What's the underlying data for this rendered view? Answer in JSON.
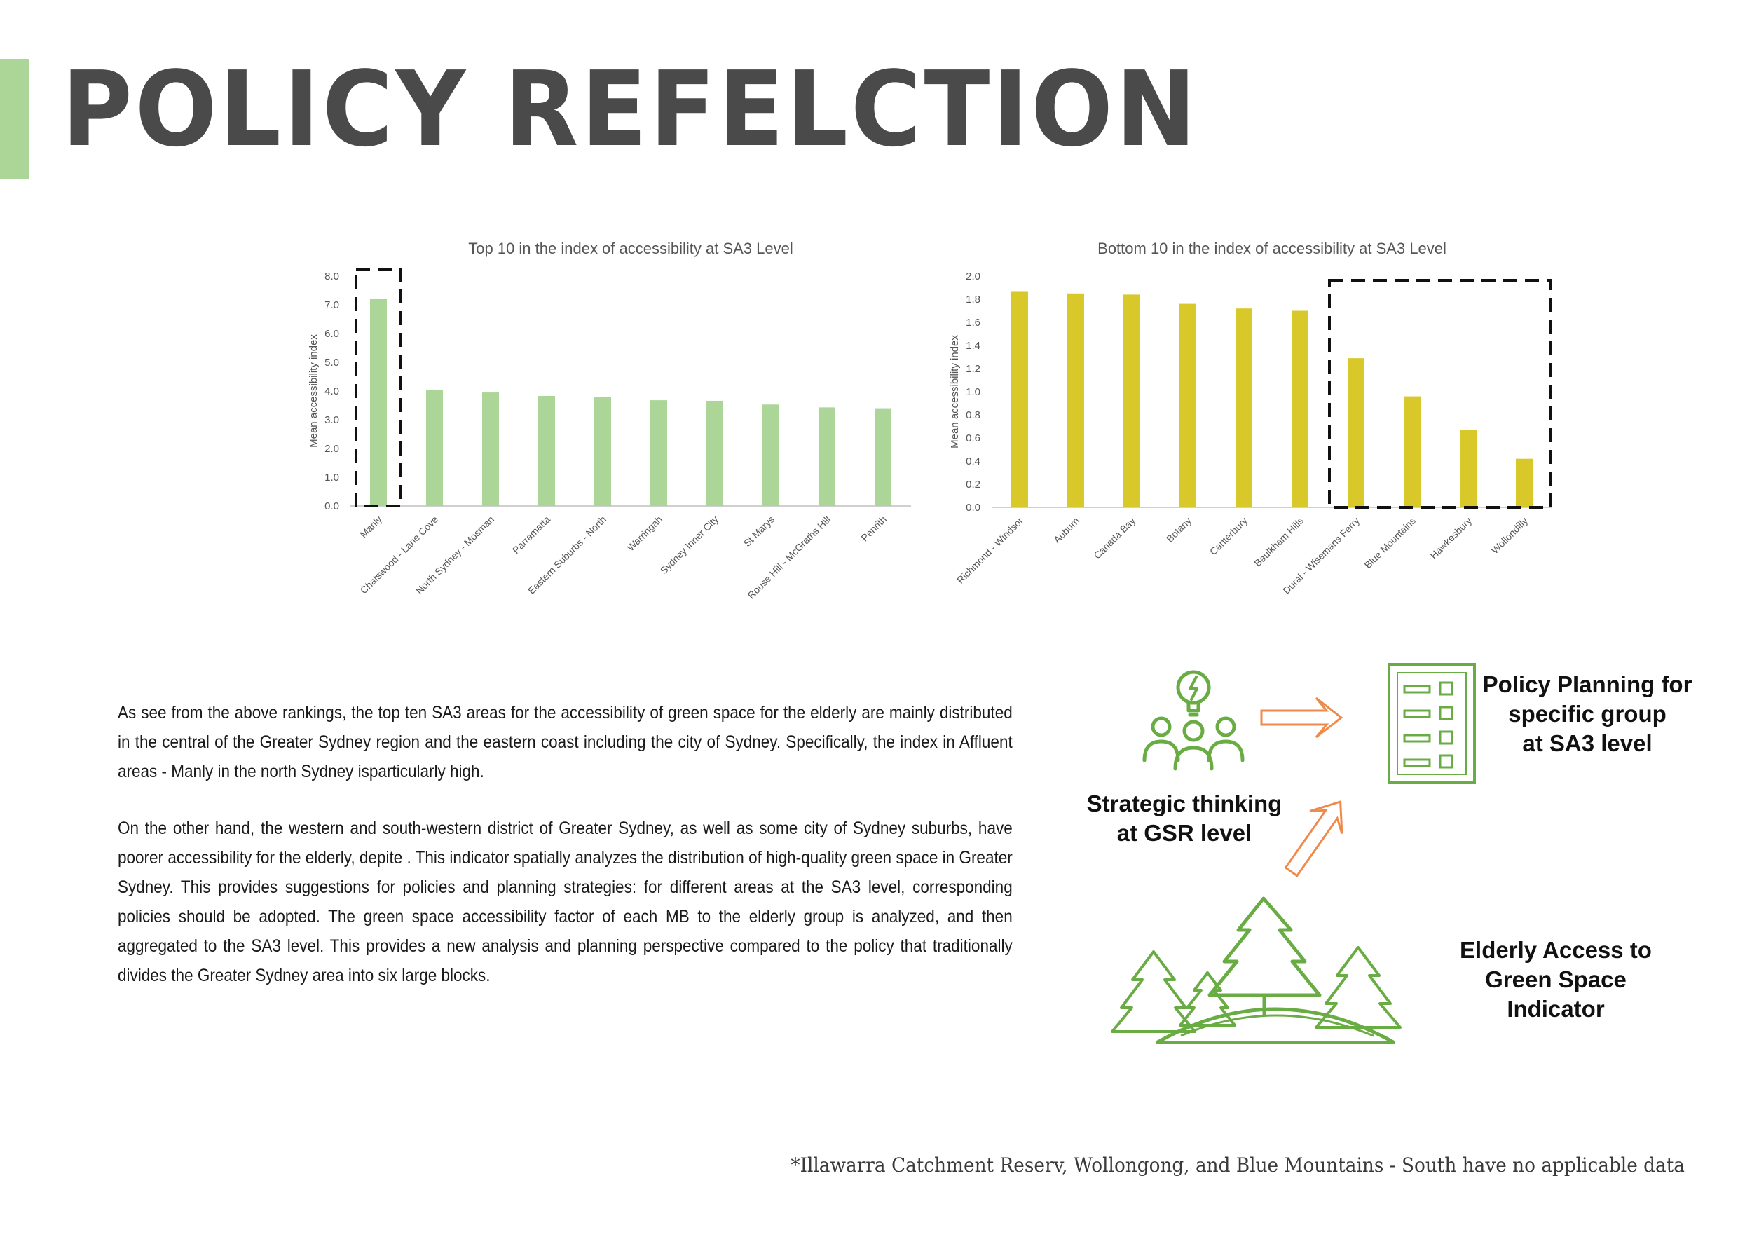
{
  "title": "POLICY REFELCTION",
  "colors": {
    "accent": "#acd698",
    "top_bar": "#acd698",
    "bottom_bar": "#d8c82a",
    "title": "#4a4a4a",
    "icon_green": "#6aac44",
    "arrow_orange": "#f08a4b"
  },
  "chart_data": [
    {
      "type": "bar",
      "title": "Top 10 in the index of accessibility at SA3 Level",
      "ylabel": "Mean accessibility index",
      "xlabel": "",
      "ylim": [
        0,
        8
      ],
      "yticks": [
        "0.0",
        "1.0",
        "2.0",
        "3.0",
        "4.0",
        "5.0",
        "6.0",
        "7.0",
        "8.0"
      ],
      "categories": [
        "Manly",
        "Chatswood - Lane Cove",
        "North Sydney - Mosman",
        "Parramatta",
        "Eastern Suburbs - North",
        "Warringah",
        "Sydney Inner City",
        "St Marys",
        "Rouse Hill - McGraths Hill",
        "Penrith"
      ],
      "values": [
        7.22,
        4.05,
        3.95,
        3.83,
        3.79,
        3.68,
        3.66,
        3.53,
        3.43,
        3.4
      ],
      "highlight": [
        "Manly"
      ],
      "grid": false
    },
    {
      "type": "bar",
      "title": "Bottom 10 in the index of accessibility at SA3 Level",
      "ylabel": "Mean accessibility  index",
      "xlabel": "",
      "ylim": [
        0,
        2
      ],
      "yticks": [
        "0.0",
        "0.2",
        "0.4",
        "0.6",
        "0.8",
        "1.0",
        "1.2",
        "1.4",
        "1.6",
        "1.8",
        "2.0"
      ],
      "categories": [
        "Richmond - Windsor",
        "Auburn",
        "Canada Bay",
        "Botany",
        "Canterbury",
        "Baulkham Hills",
        "Dural - Wisemans Ferry",
        "Blue Mountains",
        "Hawkesbury",
        "Wollondilly"
      ],
      "values": [
        1.87,
        1.85,
        1.84,
        1.76,
        1.72,
        1.7,
        1.29,
        0.96,
        0.67,
        0.42
      ],
      "highlight": [
        "Dural - Wisemans Ferry",
        "Blue Mountains",
        "Hawkesbury",
        "Wollondilly"
      ],
      "grid": false
    }
  ],
  "body": {
    "paragraph1": "As see from the above rankings, the top ten SA3 areas for the accessibility of green space for the elderly are mainly distributed in the central  of the Greater Sydney region and the eastern coast including the city of Sydney. Specifically, the index in Affluent areas - Manly in the north Sydney isparticularly high.",
    "paragraph2": "On the other hand, the western and south-western district of Greater Sydney, as well as some city of Sydney suburbs, have poorer accessibility for the elderly, depite . This indicator spatially analyzes the distribution of high-quality green space in Greater Sydney. This provides suggestions for policies and planning strategies: for different areas at the SA3 level, corresponding policies should be adopted. The green space accessibility factor of each MB to the elderly group is analyzed, and then aggregated to the SA3 level. This provides a new analysis and planning perspective compared to the policy that traditionally divides the Greater Sydney area into six large blocks."
  },
  "diagram": {
    "strategic": {
      "icon": "lightbulb-people-icon",
      "label": "Strategic thinking\nat GSR level"
    },
    "policy": {
      "icon": "checklist-icon",
      "label": "Policy Planning for\nspecific group\nat SA3 level"
    },
    "elderly": {
      "icon": "trees-icon",
      "label": "Elderly Access to\nGreen Space\nIndicator"
    }
  },
  "footnote": "*Illawarra Catchment Reserv, Wollongong, and Blue Mountains - South have no applicable data"
}
